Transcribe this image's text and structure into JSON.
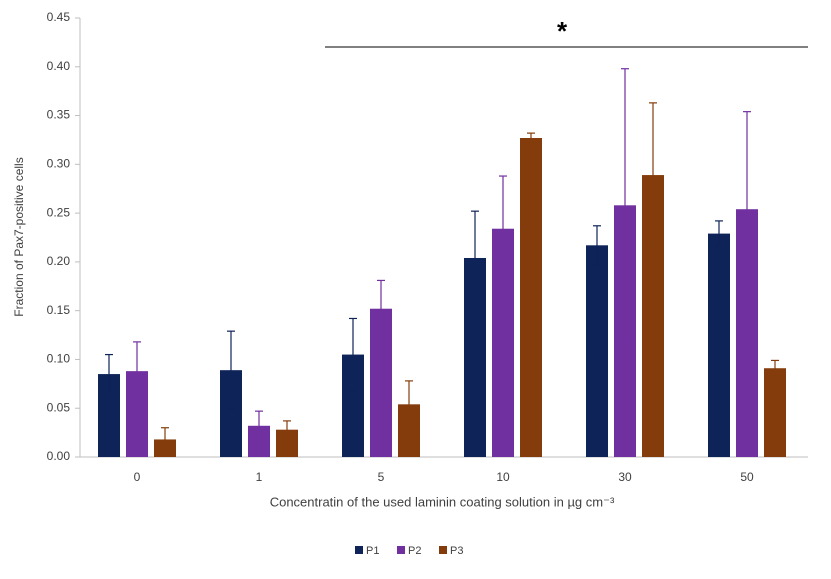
{
  "chart_data": {
    "type": "bar",
    "x_label": "Concentratin of the used laminin coating solution in µg cm⁻³",
    "y_label": "Fraction of Pax7-positive cells",
    "annotation": "*",
    "categories": [
      "0",
      "1",
      "5",
      "10",
      "30",
      "50"
    ],
    "series": [
      {
        "name": "P1",
        "color": "#0e2358",
        "values": [
          0.085,
          0.089,
          0.105,
          0.204,
          0.217,
          0.229
        ],
        "errors": [
          0.02,
          0.04,
          0.037,
          0.048,
          0.02,
          0.013
        ]
      },
      {
        "name": "P2",
        "color": "#7030a0",
        "values": [
          0.088,
          0.032,
          0.152,
          0.234,
          0.258,
          0.254
        ],
        "errors": [
          0.03,
          0.015,
          0.029,
          0.054,
          0.14,
          0.1
        ]
      },
      {
        "name": "P3",
        "color": "#843c0c",
        "values": [
          0.018,
          0.028,
          0.054,
          0.327,
          0.289,
          0.091
        ],
        "errors": [
          0.012,
          0.009,
          0.024,
          0.005,
          0.074,
          0.008
        ]
      }
    ],
    "ylim": [
      0,
      0.45
    ],
    "yticks": [
      {
        "value": 0,
        "label": "0.00"
      },
      {
        "value": 0.05,
        "label": "0.05"
      },
      {
        "value": 0.1,
        "label": "0.10"
      },
      {
        "value": 0.15,
        "label": "0.15"
      },
      {
        "value": 0.2,
        "label": "0.20"
      },
      {
        "value": 0.25,
        "label": "0.25"
      },
      {
        "value": 0.3,
        "label": "0.30"
      },
      {
        "value": 0.35,
        "label": "0.35"
      },
      {
        "value": 0.4,
        "label": "0.40"
      },
      {
        "value": 0.45,
        "label": "0.45"
      }
    ],
    "grid": false
  }
}
